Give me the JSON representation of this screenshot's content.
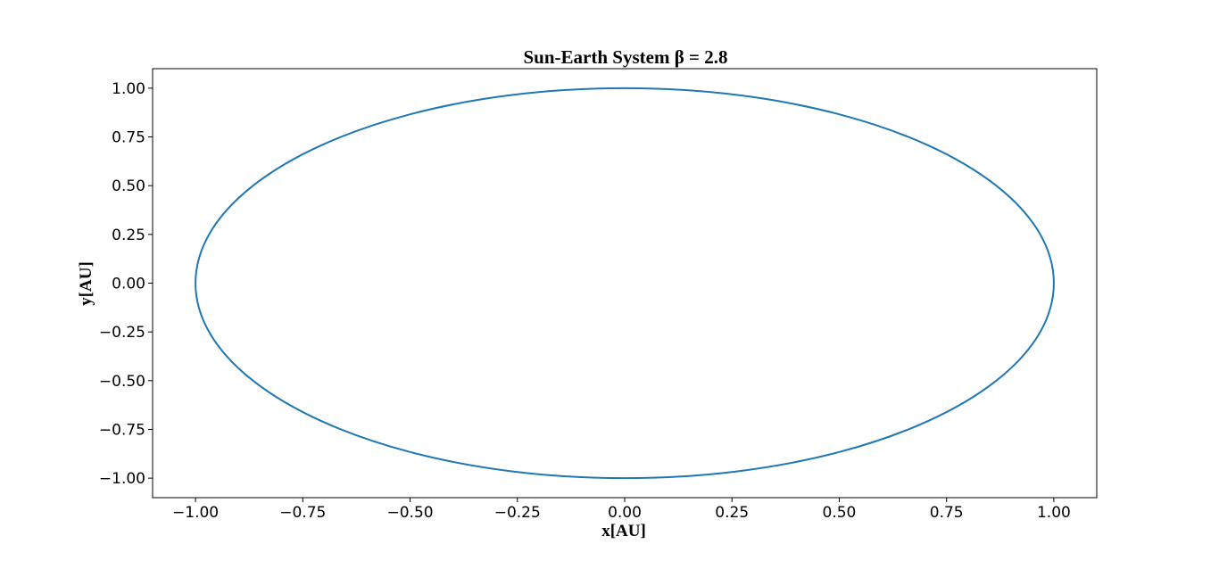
{
  "chart_data": {
    "type": "line",
    "title": "Sun-Earth System β = 2.8",
    "xlabel": "x[AU]",
    "ylabel": "y[AU]",
    "xlim": [
      -1.1,
      1.1
    ],
    "ylim": [
      -1.1,
      1.1
    ],
    "xticks": [
      -1.0,
      -0.75,
      -0.5,
      -0.25,
      0.0,
      0.25,
      0.5,
      0.75,
      1.0
    ],
    "yticks": [
      1.0,
      0.75,
      0.5,
      0.25,
      0.0,
      -0.25,
      -0.5,
      -0.75,
      -1.0
    ],
    "xtick_labels": [
      "−1.00",
      "−0.75",
      "−0.50",
      "−0.25",
      "0.00",
      "0.25",
      "0.50",
      "0.75",
      "1.00"
    ],
    "ytick_labels": [
      "1.00",
      "0.75",
      "0.50",
      "0.25",
      "0.00",
      "−0.25",
      "−0.50",
      "−0.75",
      "−1.00"
    ],
    "grid": false,
    "series": [
      {
        "color": "#1f77b4",
        "x": [
          1.0,
          0.966,
          0.866,
          0.707,
          0.5,
          0.259,
          0.0,
          -0.259,
          -0.5,
          -0.707,
          -0.866,
          -0.966,
          -1.0,
          -0.966,
          -0.866,
          -0.707,
          -0.5,
          -0.259,
          0.0,
          0.259,
          0.5,
          0.707,
          0.866,
          0.966,
          1.0
        ],
        "y": [
          0.0,
          0.259,
          0.5,
          0.707,
          0.866,
          0.966,
          1.0,
          0.966,
          0.866,
          0.707,
          0.5,
          0.259,
          0.0,
          -0.259,
          -0.5,
          -0.707,
          -0.866,
          -0.966,
          -1.0,
          -0.966,
          -0.866,
          -0.707,
          -0.5,
          -0.259,
          0.0
        ]
      }
    ]
  }
}
